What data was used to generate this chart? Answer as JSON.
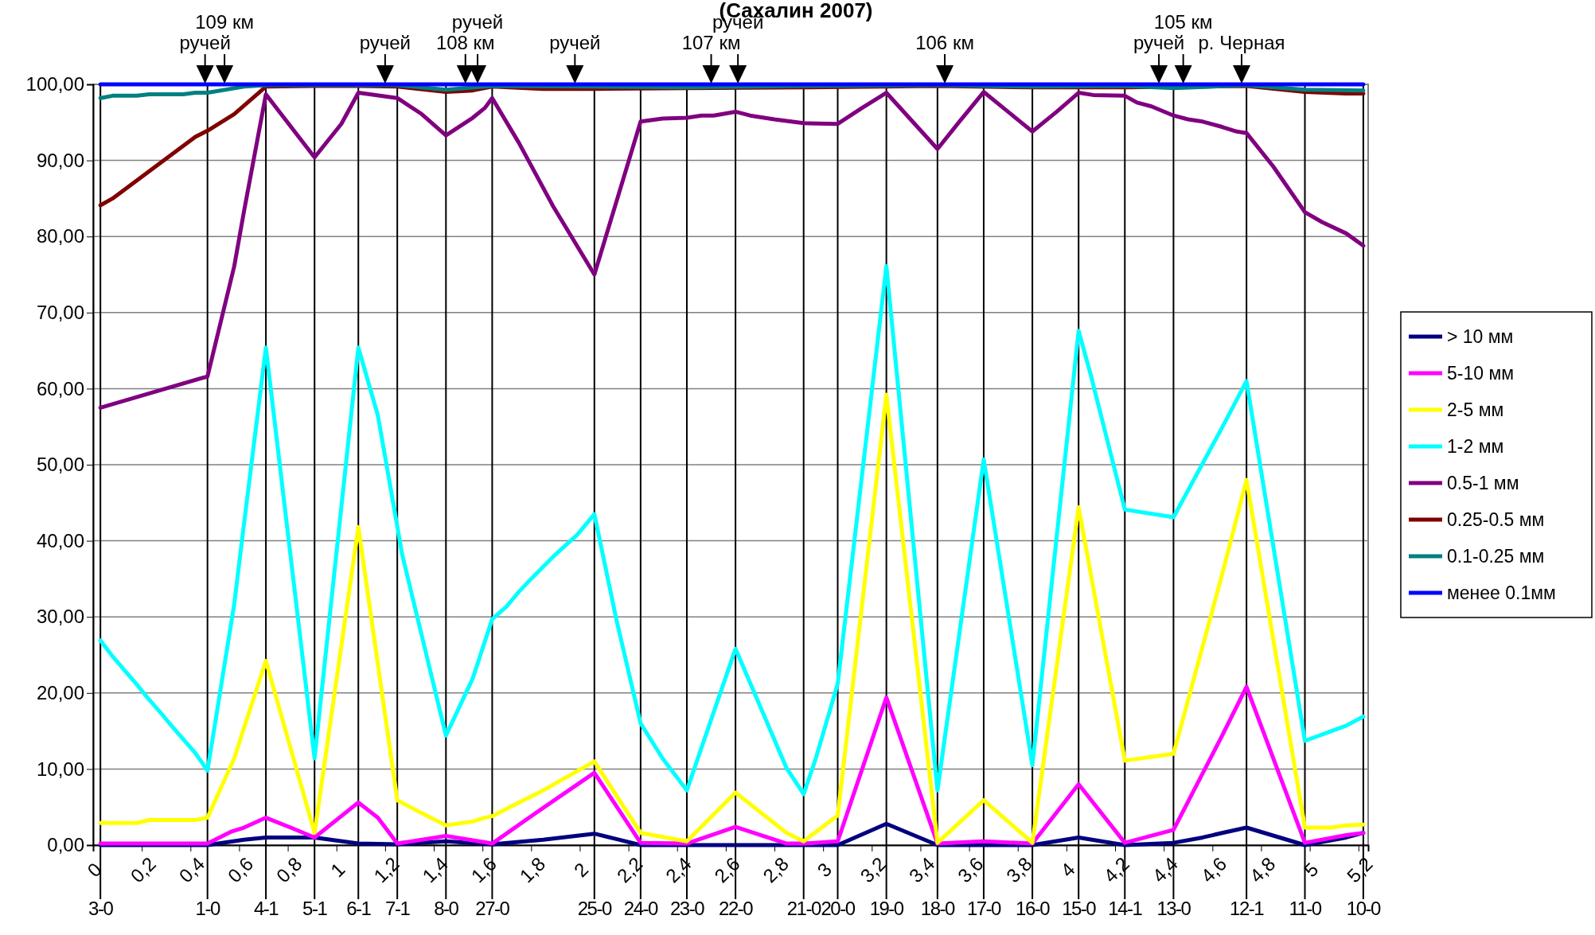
{
  "chart_data": {
    "type": "line",
    "title": "(Сахалин 2007)",
    "xlim": [
      0,
      5.24
    ],
    "ylim": [
      0,
      100
    ],
    "xticks": [
      0,
      {
        "value": 0.2,
        "label": "0,2"
      },
      {
        "value": 0.4,
        "label": "0,4"
      },
      {
        "value": 0.6,
        "label": "0,6"
      },
      {
        "value": 0.8,
        "label": "0,8"
      },
      1,
      {
        "value": 1.2,
        "label": "1,2"
      },
      {
        "value": 1.4,
        "label": "1,4"
      },
      {
        "value": 1.6,
        "label": "1,6"
      },
      {
        "value": 1.8,
        "label": "1,8"
      },
      2,
      {
        "value": 2.2,
        "label": "2,2"
      },
      {
        "value": 2.4,
        "label": "2,4"
      },
      {
        "value": 2.6,
        "label": "2,6"
      },
      {
        "value": 2.8,
        "label": "2,8"
      },
      3,
      {
        "value": 3.2,
        "label": "3,2"
      },
      {
        "value": 3.4,
        "label": "3,4"
      },
      {
        "value": 3.6,
        "label": "3,6"
      },
      {
        "value": 3.8,
        "label": "3,8"
      },
      4,
      {
        "value": 4.2,
        "label": "4,2"
      },
      {
        "value": 4.4,
        "label": "4,4"
      },
      {
        "value": 4.6,
        "label": "4,6"
      },
      {
        "value": 4.8,
        "label": "4,8"
      },
      5,
      {
        "value": 5.2,
        "label": "5,2"
      }
    ],
    "yticks": [
      {
        "value": 0,
        "label": "0,00"
      },
      {
        "value": 10,
        "label": "10,00"
      },
      {
        "value": 20,
        "label": "20,00"
      },
      {
        "value": 30,
        "label": "30,00"
      },
      {
        "value": 40,
        "label": "40,00"
      },
      {
        "value": 50,
        "label": "50,00"
      },
      {
        "value": 60,
        "label": "60,00"
      },
      {
        "value": 70,
        "label": "70,00"
      },
      {
        "value": 80,
        "label": "80,00"
      },
      {
        "value": 90,
        "label": "90,00"
      },
      {
        "value": 100,
        "label": "100,00"
      }
    ],
    "grid": "y",
    "legend": "right",
    "marker": "none",
    "line_style": "solid",
    "series": [
      {
        "name": "> 10 мм",
        "color": "#000080",
        "x": [
          0.03,
          0.47,
          0.62,
          0.71,
          0.91,
          1.09,
          1.25,
          1.45,
          1.64,
          1.85,
          2.06,
          2.15,
          2.25,
          2.85,
          3.06,
          3.26,
          3.47,
          3.86,
          4.05,
          4.24,
          4.44,
          4.56,
          4.64,
          4.74,
          4.98,
          5.15,
          5.22
        ],
        "values": [
          0,
          0,
          0.7,
          1.0,
          1.0,
          0.2,
          0.1,
          0.5,
          0.1,
          0.7,
          1.5,
          0.8,
          0,
          0,
          0,
          2.8,
          0,
          0,
          1.0,
          0,
          0.3,
          1.0,
          1.6,
          2.3,
          0,
          1.0,
          1.6
        ]
      },
      {
        "name": "5-10 мм",
        "color": "#ff00ff",
        "x": [
          0.03,
          0.47,
          0.57,
          0.62,
          0.71,
          0.82,
          0.91,
          1.09,
          1.17,
          1.25,
          1.45,
          1.64,
          1.8,
          2.06,
          2.25,
          2.44,
          2.64,
          2.85,
          2.92,
          3.06,
          3.26,
          3.47,
          3.66,
          3.86,
          4.05,
          4.24,
          4.44,
          4.64,
          4.74,
          4.98,
          5.15,
          5.22
        ],
        "values": [
          0.2,
          0.2,
          1.8,
          2.3,
          3.6,
          2.2,
          1.0,
          5.6,
          3.6,
          0.2,
          1.2,
          0.2,
          3.8,
          9.5,
          0.3,
          0.2,
          2.4,
          0.2,
          0.2,
          0.5,
          19.4,
          0.2,
          0.5,
          0.2,
          8.0,
          0.3,
          2.0,
          14.4,
          20.8,
          0.3,
          1.3,
          1.6
        ]
      },
      {
        "name": "2-5 мм",
        "color": "#ffff00",
        "x": [
          0.03,
          0.18,
          0.23,
          0.42,
          0.47,
          0.58,
          0.62,
          0.71,
          0.91,
          1.09,
          1.25,
          1.35,
          1.45,
          1.56,
          1.61,
          1.64,
          1.75,
          1.85,
          2.06,
          2.25,
          2.44,
          2.64,
          2.85,
          2.92,
          3.06,
          3.26,
          3.47,
          3.66,
          3.86,
          4.05,
          4.24,
          4.44,
          4.64,
          4.74,
          4.98,
          5.09,
          5.15,
          5.22
        ],
        "values": [
          2.9,
          2.9,
          3.3,
          3.3,
          3.6,
          11.4,
          15.4,
          24.2,
          1.6,
          41.8,
          5.9,
          4.2,
          2.6,
          3.1,
          3.6,
          3.8,
          5.6,
          7.2,
          11.0,
          1.6,
          0.5,
          6.9,
          1.6,
          0.5,
          3.9,
          59.2,
          0.3,
          5.9,
          0.3,
          44.4,
          11.1,
          12.0,
          35.6,
          48.0,
          2.3,
          2.3,
          2.6,
          2.7
        ]
      },
      {
        "name": "1-2 мм",
        "color": "#00ffff",
        "x": [
          0.03,
          0.08,
          0.18,
          0.22,
          0.28,
          0.33,
          0.42,
          0.47,
          0.58,
          0.62,
          0.71,
          0.91,
          1.09,
          1.17,
          1.22,
          1.27,
          1.45,
          1.56,
          1.64,
          1.7,
          1.75,
          1.8,
          1.85,
          1.9,
          1.99,
          2.06,
          2.15,
          2.25,
          2.34,
          2.44,
          2.64,
          2.85,
          2.92,
          2.97,
          3.06,
          3.26,
          3.47,
          3.66,
          3.86,
          4.05,
          4.1,
          4.24,
          4.44,
          4.64,
          4.74,
          4.98,
          5.09,
          5.15,
          5.22
        ],
        "values": [
          26.9,
          24.8,
          21.1,
          19.5,
          17.3,
          15.4,
          12.1,
          9.8,
          31.7,
          42.2,
          65.4,
          11.4,
          65.4,
          56.5,
          47.4,
          38.2,
          14.4,
          21.9,
          29.7,
          31.4,
          33.3,
          35.0,
          36.6,
          38.2,
          40.8,
          43.5,
          29.7,
          16.0,
          11.4,
          7.2,
          25.8,
          10.1,
          6.7,
          11.4,
          21.2,
          76.1,
          7.2,
          50.7,
          10.5,
          67.6,
          61.8,
          44.1,
          43.1,
          54.9,
          61.0,
          13.7,
          15.0,
          15.7,
          16.9
        ]
      },
      {
        "name": "0.5-1 мм",
        "color": "#800080",
        "x": [
          0.03,
          0.47,
          0.58,
          0.62,
          0.71,
          0.91,
          1.02,
          1.09,
          1.25,
          1.35,
          1.45,
          1.56,
          1.61,
          1.64,
          1.75,
          1.89,
          2.06,
          2.25,
          2.34,
          2.44,
          2.5,
          2.55,
          2.64,
          2.7,
          2.8,
          2.92,
          3.06,
          3.16,
          3.26,
          3.47,
          3.56,
          3.66,
          3.81,
          3.86,
          3.96,
          4.05,
          4.11,
          4.24,
          4.29,
          4.35,
          4.44,
          4.5,
          4.56,
          4.64,
          4.7,
          4.74,
          4.85,
          4.98,
          5.05,
          5.15,
          5.22
        ],
        "values": [
          57.5,
          61.6,
          76.1,
          83.3,
          98.7,
          90.4,
          94.8,
          98.9,
          98.2,
          96.1,
          93.3,
          95.6,
          96.9,
          98.2,
          92.3,
          84.0,
          75.0,
          95.1,
          95.5,
          95.6,
          95.9,
          95.9,
          96.4,
          95.9,
          95.4,
          94.9,
          94.8,
          96.9,
          98.9,
          91.5,
          95.1,
          99.0,
          95.1,
          93.8,
          96.4,
          98.9,
          98.6,
          98.5,
          97.6,
          97.1,
          95.9,
          95.4,
          95.1,
          94.4,
          93.8,
          93.6,
          89.2,
          83.2,
          81.9,
          80.4,
          78.8
        ]
      },
      {
        "name": "0.25-0.5 мм",
        "color": "#800000",
        "x": [
          0.03,
          0.08,
          0.42,
          0.47,
          0.58,
          0.71,
          0.91,
          1.09,
          1.25,
          1.45,
          1.56,
          1.64,
          1.85,
          2.06,
          2.44,
          2.92,
          3.47,
          3.86,
          4.24,
          4.74,
          4.98,
          5.15,
          5.22
        ],
        "values": [
          84.1,
          85.0,
          93.1,
          93.9,
          96.1,
          99.7,
          99.8,
          99.8,
          99.7,
          99.0,
          99.2,
          99.7,
          99.4,
          99.4,
          99.5,
          99.6,
          99.8,
          99.6,
          99.6,
          99.8,
          99.0,
          98.8,
          98.8
        ]
      },
      {
        "name": "0.1-0.25 мм",
        "color": "#008080",
        "x": [
          0.03,
          0.08,
          0.18,
          0.23,
          0.37,
          0.42,
          0.47,
          0.62,
          0.71,
          1.25,
          1.45,
          1.64,
          2.44,
          2.92,
          3.47,
          3.86,
          4.24,
          4.44,
          4.74,
          4.98,
          5.22
        ],
        "values": [
          98.2,
          98.5,
          98.5,
          98.7,
          98.7,
          98.9,
          98.9,
          99.7,
          99.9,
          99.9,
          99.3,
          99.8,
          99.6,
          99.8,
          99.9,
          99.7,
          99.8,
          99.5,
          99.9,
          99.3,
          99.2
        ]
      },
      {
        "name": "менее 0.1мм",
        "color": "#0000ff",
        "x": [
          0.03,
          5.22
        ],
        "values": [
          100,
          100
        ]
      }
    ],
    "ref_lines": [
      {
        "axis": "x",
        "value": 0.03
      },
      {
        "axis": "x",
        "value": 0.47
      },
      {
        "axis": "x",
        "value": 0.71
      },
      {
        "axis": "x",
        "value": 0.91
      },
      {
        "axis": "x",
        "value": 1.09
      },
      {
        "axis": "x",
        "value": 1.25
      },
      {
        "axis": "x",
        "value": 1.45
      },
      {
        "axis": "x",
        "value": 1.64
      },
      {
        "axis": "x",
        "value": 2.06
      },
      {
        "axis": "x",
        "value": 2.25
      },
      {
        "axis": "x",
        "value": 2.44
      },
      {
        "axis": "x",
        "value": 2.64
      },
      {
        "axis": "x",
        "value": 2.92
      },
      {
        "axis": "x",
        "value": 3.06
      },
      {
        "axis": "x",
        "value": 3.26
      },
      {
        "axis": "x",
        "value": 3.47
      },
      {
        "axis": "x",
        "value": 3.66
      },
      {
        "axis": "x",
        "value": 3.86
      },
      {
        "axis": "x",
        "value": 4.05
      },
      {
        "axis": "x",
        "value": 4.24
      },
      {
        "axis": "x",
        "value": 4.44
      },
      {
        "axis": "x",
        "value": 4.74
      },
      {
        "axis": "x",
        "value": 4.98
      },
      {
        "axis": "x",
        "value": 5.22
      }
    ],
    "annotations": [
      {
        "text": "3-0",
        "x": 0.03,
        "y": 0
      },
      {
        "text": "1-0",
        "x": 0.47,
        "y": 0
      },
      {
        "text": "4-1",
        "x": 0.71,
        "y": 0
      },
      {
        "text": "5-1",
        "x": 0.91,
        "y": 0
      },
      {
        "text": "6-1",
        "x": 1.09,
        "y": 0
      },
      {
        "text": "7-1",
        "x": 1.25,
        "y": 0
      },
      {
        "text": "8-0",
        "x": 1.45,
        "y": 0
      },
      {
        "text": "27-0",
        "x": 1.64,
        "y": 0
      },
      {
        "text": "25-0",
        "x": 2.06,
        "y": 0
      },
      {
        "text": "24-0",
        "x": 2.25,
        "y": 0
      },
      {
        "text": "23-0",
        "x": 2.44,
        "y": 0
      },
      {
        "text": "22-0",
        "x": 2.64,
        "y": 0
      },
      {
        "text": "21-0",
        "x": 2.92,
        "y": 0
      },
      {
        "text": "20-0",
        "x": 3.06,
        "y": 0
      },
      {
        "text": "19-0",
        "x": 3.26,
        "y": 0
      },
      {
        "text": "18-0",
        "x": 3.47,
        "y": 0
      },
      {
        "text": "17-0",
        "x": 3.66,
        "y": 0
      },
      {
        "text": "16-0",
        "x": 3.86,
        "y": 0
      },
      {
        "text": "15-0",
        "x": 4.05,
        "y": 0
      },
      {
        "text": "14-1",
        "x": 4.24,
        "y": 0
      },
      {
        "text": "13-0",
        "x": 4.44,
        "y": 0
      },
      {
        "text": "12-1",
        "x": 4.74,
        "y": 0
      },
      {
        "text": "11-0",
        "x": 4.98,
        "y": 0
      },
      {
        "text": "10-0",
        "x": 5.22,
        "y": 0
      },
      {
        "text": "ручей",
        "x": 0.46,
        "y": 100
      },
      {
        "text": "109 км",
        "x": 0.54,
        "y": 100
      },
      {
        "text": "ручей",
        "x": 1.2,
        "y": 100
      },
      {
        "text": "108 км",
        "x": 1.53,
        "y": 100
      },
      {
        "text": "ручей",
        "x": 1.58,
        "y": 100
      },
      {
        "text": "ручей",
        "x": 1.98,
        "y": 100
      },
      {
        "text": "107 км",
        "x": 2.54,
        "y": 100
      },
      {
        "text": "ручей",
        "x": 2.65,
        "y": 100
      },
      {
        "text": "106 км",
        "x": 3.5,
        "y": 100
      },
      {
        "text": "ручей",
        "x": 4.38,
        "y": 100
      },
      {
        "text": "105 км",
        "x": 4.48,
        "y": 100
      },
      {
        "text": "р. Черная",
        "x": 4.72,
        "y": 100
      }
    ]
  }
}
